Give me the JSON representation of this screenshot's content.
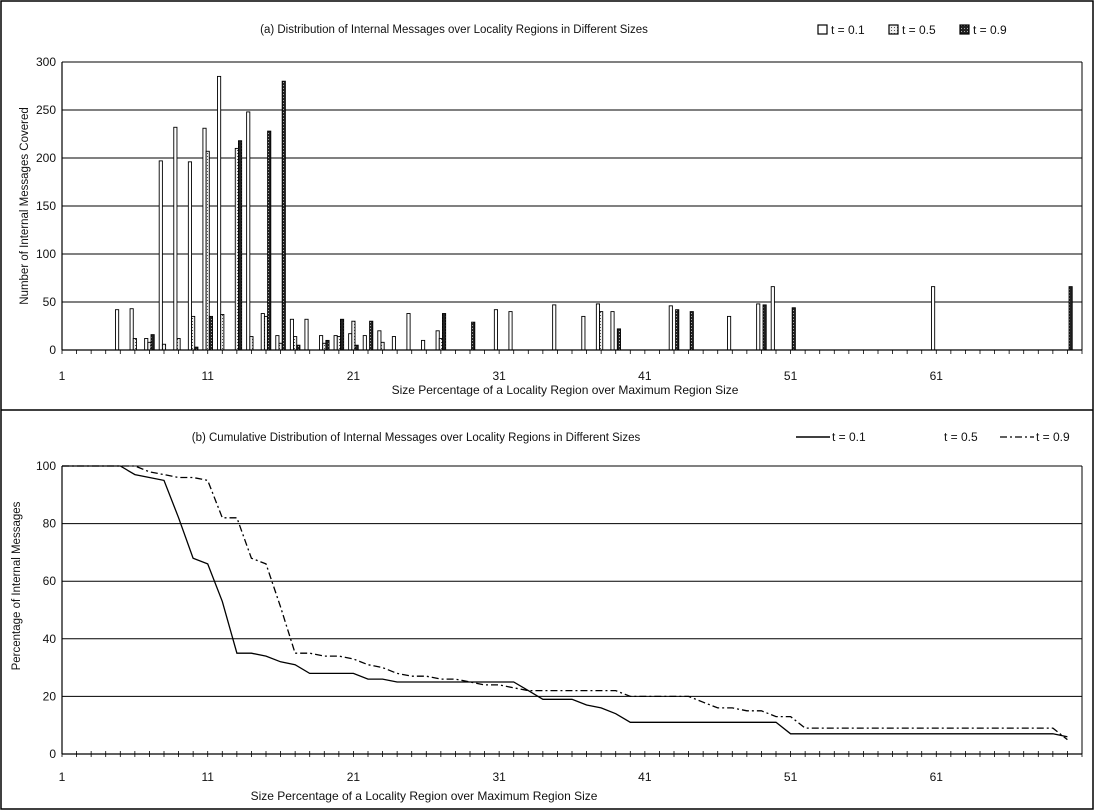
{
  "chart_data": [
    {
      "type": "bar",
      "title": "(a) Distribution of Internal Messages over Locality Regions in Different Sizes",
      "xlabel": "Size Percentage of a Locality Region over Maximum Region Size",
      "ylabel": "Number of Internal Messages Covered",
      "xlim": [
        1,
        71
      ],
      "ylim": [
        0,
        300
      ],
      "yticks": [
        0,
        50,
        100,
        150,
        200,
        250,
        300
      ],
      "xticks": [
        1,
        11,
        21,
        31,
        41,
        51,
        61
      ],
      "grid": true,
      "legend_position": "top-right",
      "x": [
        5,
        6,
        7,
        8,
        9,
        10,
        11,
        12,
        13,
        14,
        15,
        16,
        17,
        18,
        19,
        20,
        21,
        22,
        23,
        24,
        25,
        26,
        27,
        28,
        29,
        30,
        31,
        32,
        33,
        34,
        35,
        36,
        37,
        38,
        39,
        40,
        41,
        42,
        43,
        44,
        45,
        46,
        47,
        48,
        49,
        50,
        51,
        52,
        53,
        54,
        55,
        56,
        57,
        58,
        59,
        60,
        61,
        62,
        63,
        64,
        65,
        66,
        67,
        68,
        69,
        70
      ],
      "series": [
        {
          "name": "t = 0.1",
          "color": "#ffffff",
          "values": [
            42,
            43,
            12,
            197,
            232,
            196,
            231,
            285,
            0,
            248,
            38,
            15,
            32,
            32,
            15,
            15,
            17,
            15,
            20,
            14,
            38,
            10,
            20,
            0,
            0,
            0,
            42,
            40,
            0,
            0,
            47,
            0,
            35,
            48,
            40,
            0,
            0,
            0,
            46,
            0,
            0,
            0,
            35,
            0,
            48,
            66,
            0,
            0,
            0,
            0,
            0,
            0,
            0,
            0,
            0,
            0,
            66,
            0,
            0,
            0,
            0,
            0,
            0,
            0,
            0,
            0
          ]
        },
        {
          "name": "t = 0.5",
          "color": "#dcdcdc",
          "values": [
            0,
            12,
            8,
            6,
            12,
            35,
            207,
            37,
            210,
            14,
            35,
            7,
            14,
            0,
            7,
            14,
            30,
            0,
            8,
            0,
            0,
            0,
            12,
            0,
            0,
            0,
            0,
            0,
            0,
            0,
            0,
            0,
            0,
            40,
            0,
            0,
            0,
            0,
            0,
            0,
            0,
            0,
            0,
            0,
            0,
            0,
            0,
            0,
            0,
            0,
            0,
            0,
            0,
            0,
            0,
            0,
            0,
            0,
            0,
            0,
            0,
            0,
            0,
            0,
            0,
            0
          ]
        },
        {
          "name": "t = 0.9",
          "color": "#111111",
          "values": [
            0,
            0,
            16,
            0,
            0,
            3,
            35,
            0,
            218,
            0,
            228,
            280,
            5,
            0,
            10,
            32,
            5,
            30,
            0,
            0,
            0,
            0,
            38,
            0,
            29,
            0,
            0,
            0,
            0,
            0,
            0,
            0,
            0,
            0,
            22,
            0,
            0,
            0,
            42,
            40,
            0,
            0,
            0,
            0,
            47,
            0,
            44,
            0,
            0,
            0,
            0,
            0,
            0,
            0,
            0,
            0,
            0,
            0,
            0,
            0,
            0,
            0,
            0,
            0,
            0,
            66
          ]
        }
      ]
    },
    {
      "type": "line",
      "title": "(b) Cumulative Distribution of Internal Messages over Locality Regions in Different Sizes",
      "xlabel": "Size Percentage of a Locality Region over Maximum Region Size",
      "ylabel": "Percentage of Internal Messages",
      "xlim": [
        1,
        71
      ],
      "ylim": [
        0,
        100
      ],
      "yticks": [
        0,
        20,
        40,
        60,
        80,
        100
      ],
      "xticks": [
        1,
        11,
        21,
        31,
        41,
        51,
        61
      ],
      "grid": true,
      "legend_position": "top-right",
      "series": [
        {
          "name": "t = 0.1",
          "style": "solid",
          "x": [
            1,
            4,
            5,
            6,
            7,
            8,
            9,
            10,
            11,
            12,
            13,
            14,
            15,
            16,
            17,
            18,
            19,
            20,
            21,
            22,
            23,
            24,
            25,
            26,
            27,
            28,
            29,
            30,
            31,
            32,
            33,
            34,
            35,
            36,
            37,
            38,
            39,
            40,
            41,
            42,
            43,
            44,
            45,
            46,
            47,
            48,
            49,
            50,
            51,
            52,
            55,
            60,
            65,
            69,
            70
          ],
          "y": [
            100,
            100,
            100,
            97,
            96,
            95,
            82,
            68,
            66,
            53,
            35,
            35,
            34,
            32,
            31,
            28,
            28,
            28,
            28,
            26,
            26,
            25,
            25,
            25,
            25,
            25,
            25,
            25,
            25,
            25,
            22,
            19,
            19,
            19,
            17,
            16,
            14,
            11,
            11,
            11,
            11,
            11,
            11,
            11,
            11,
            11,
            11,
            11,
            7,
            7,
            7,
            7,
            7,
            7,
            6
          ]
        },
        {
          "name": "t = 0.9",
          "style": "dash-dot",
          "x": [
            1,
            4,
            5,
            6,
            7,
            8,
            9,
            10,
            11,
            12,
            13,
            14,
            15,
            16,
            17,
            18,
            19,
            20,
            21,
            22,
            23,
            24,
            25,
            26,
            27,
            28,
            29,
            30,
            31,
            32,
            33,
            34,
            35,
            36,
            37,
            38,
            39,
            40,
            41,
            42,
            43,
            44,
            45,
            46,
            47,
            48,
            49,
            50,
            51,
            52,
            55,
            60,
            65,
            69,
            70
          ],
          "y": [
            100,
            100,
            100,
            100,
            98,
            97,
            96,
            96,
            95,
            82,
            82,
            68,
            66,
            51,
            35,
            35,
            34,
            34,
            33,
            31,
            30,
            28,
            27,
            27,
            26,
            26,
            25,
            24,
            24,
            23,
            22,
            22,
            22,
            22,
            22,
            22,
            22,
            20,
            20,
            20,
            20,
            20,
            18,
            16,
            16,
            15,
            15,
            13,
            13,
            9,
            9,
            9,
            9,
            9,
            5
          ]
        }
      ]
    }
  ]
}
